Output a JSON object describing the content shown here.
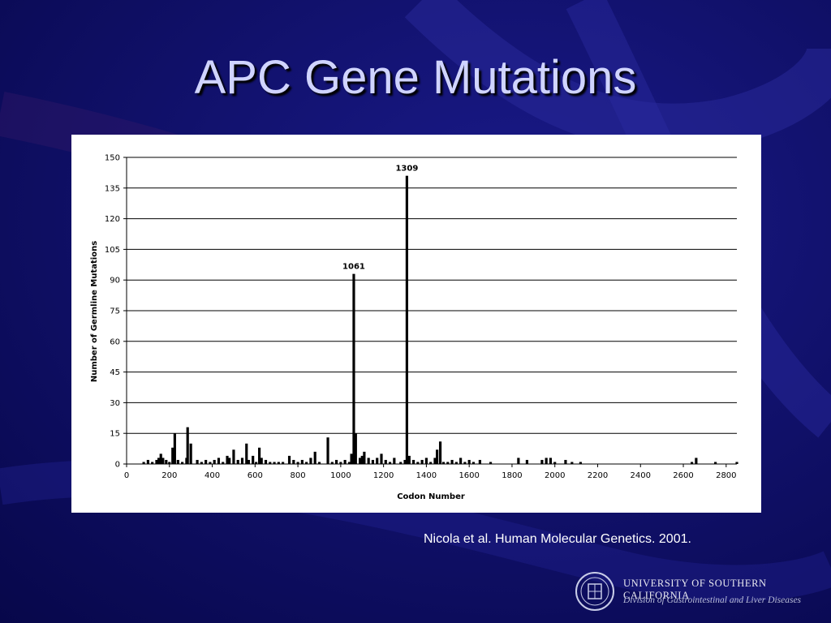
{
  "slide": {
    "title": "APC Gene Mutations",
    "citation": "Nicola et al. Human Molecular Genetics. 2001.",
    "institution": "UNIVERSITY OF SOUTHERN CALIFORNIA",
    "division": "Division of Gastrointestinal and Liver Diseases",
    "logo_icon": "usc-seal-icon",
    "colors": {
      "background": "#0b0b5c",
      "title": "#d0d4ff",
      "bars": "#000000"
    }
  },
  "chart_data": {
    "type": "bar",
    "title": "",
    "xlabel": "Codon Number",
    "ylabel": "Number of Germline Mutations",
    "xlim": [
      0,
      2850
    ],
    "ylim": [
      0,
      150
    ],
    "xticks": [
      0,
      200,
      400,
      600,
      800,
      1000,
      1200,
      1400,
      1600,
      1800,
      2000,
      2200,
      2400,
      2600,
      2800
    ],
    "yticks": [
      0,
      15,
      30,
      45,
      60,
      75,
      90,
      105,
      120,
      135,
      150
    ],
    "grid": "horizontal",
    "bar_width_codons": 12,
    "annotations": [
      {
        "label": "1061",
        "x": 1061,
        "y": 93
      },
      {
        "label": "1309",
        "x": 1309,
        "y": 141
      }
    ],
    "x": [
      80,
      100,
      120,
      140,
      150,
      160,
      170,
      185,
      200,
      215,
      225,
      240,
      260,
      280,
      285,
      300,
      330,
      350,
      370,
      390,
      410,
      430,
      450,
      470,
      480,
      500,
      520,
      540,
      560,
      570,
      590,
      605,
      620,
      630,
      650,
      670,
      690,
      710,
      730,
      760,
      780,
      800,
      820,
      840,
      860,
      880,
      900,
      940,
      960,
      980,
      1000,
      1020,
      1040,
      1050,
      1061,
      1070,
      1090,
      1100,
      1110,
      1130,
      1150,
      1170,
      1190,
      1210,
      1230,
      1250,
      1280,
      1300,
      1309,
      1320,
      1340,
      1360,
      1380,
      1400,
      1420,
      1440,
      1450,
      1465,
      1480,
      1500,
      1520,
      1540,
      1560,
      1580,
      1600,
      1620,
      1650,
      1700,
      1830,
      1870,
      1940,
      1960,
      1980,
      2000,
      2050,
      2080,
      2120,
      2640,
      2660,
      2750,
      2850
    ],
    "values": [
      1,
      2,
      1,
      2,
      3,
      5,
      3,
      2,
      1,
      8,
      15,
      2,
      1,
      3,
      18,
      10,
      2,
      1,
      2,
      1,
      2,
      3,
      1,
      4,
      3,
      7,
      2,
      3,
      10,
      2,
      4,
      1,
      8,
      3,
      2,
      1,
      1,
      1,
      1,
      4,
      2,
      1,
      2,
      1,
      3,
      6,
      1,
      13,
      1,
      2,
      1,
      2,
      1,
      5,
      93,
      15,
      3,
      4,
      6,
      3,
      2,
      3,
      5,
      2,
      1,
      3,
      1,
      2,
      141,
      4,
      2,
      1,
      2,
      3,
      1,
      3,
      7,
      11,
      1,
      1,
      2,
      1,
      3,
      1,
      2,
      1,
      2,
      1,
      3,
      2,
      2,
      3,
      3,
      1,
      2,
      1,
      1,
      1,
      3,
      1,
      1
    ]
  }
}
